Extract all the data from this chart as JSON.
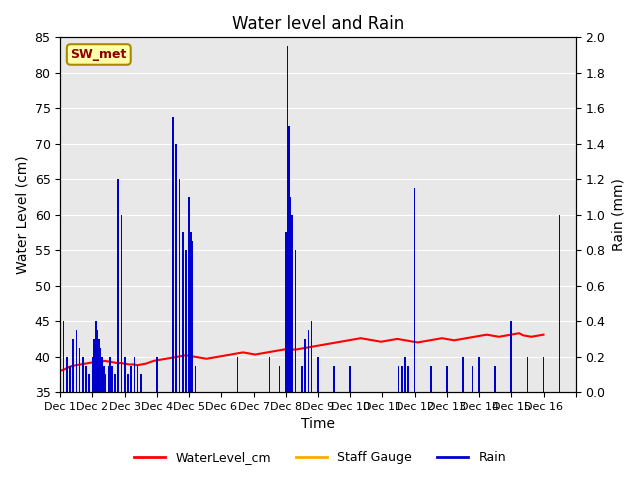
{
  "title": "Water level and Rain",
  "xlabel": "Time",
  "ylabel_left": "Water Level (cm)",
  "ylabel_right": "Rain (mm)",
  "station_label": "SW_met",
  "ylim_left": [
    35,
    85
  ],
  "ylim_right": [
    0.0,
    2.0
  ],
  "yticks_left": [
    35,
    40,
    45,
    50,
    55,
    60,
    65,
    70,
    75,
    80,
    85
  ],
  "yticks_right": [
    0.0,
    0.2,
    0.4,
    0.6,
    0.8,
    1.0,
    1.2,
    1.4,
    1.6,
    1.8,
    2.0
  ],
  "bg_color": "#e8e8e8",
  "water_level_color": "#ff0000",
  "rain_color": "#0000cc",
  "staff_gauge_color": "#ffaa00",
  "legend_labels": [
    "WaterLevel_cm",
    "Staff Gauge",
    "Rain"
  ],
  "water_level": [
    38.0,
    38.2,
    38.5,
    38.7,
    38.8,
    38.9,
    39.0,
    39.1,
    39.2,
    39.2,
    39.3,
    39.4,
    39.3,
    39.2,
    39.1,
    39.1,
    39.0,
    38.9,
    38.9,
    38.8,
    38.9,
    39.0,
    39.2,
    39.4,
    39.5,
    39.6,
    39.7,
    39.8,
    39.9,
    40.0,
    40.1,
    40.2,
    40.1,
    40.0,
    39.9,
    39.8,
    39.7,
    39.8,
    39.9,
    40.0,
    40.1,
    40.2,
    40.3,
    40.4,
    40.5,
    40.6,
    40.5,
    40.4,
    40.3,
    40.4,
    40.5,
    40.6,
    40.7,
    40.8,
    40.9,
    41.0,
    41.1,
    41.0,
    41.0,
    41.1,
    41.2,
    41.3,
    41.4,
    41.5,
    41.6,
    41.7,
    41.8,
    41.9,
    42.0,
    42.1,
    42.2,
    42.3,
    42.4,
    42.5,
    42.6,
    42.5,
    42.4,
    42.3,
    42.2,
    42.1,
    42.2,
    42.3,
    42.4,
    42.5,
    42.4,
    42.3,
    42.2,
    42.1,
    42.0,
    42.1,
    42.2,
    42.3,
    42.4,
    42.5,
    42.6,
    42.5,
    42.4,
    42.3,
    42.4,
    42.5,
    42.6,
    42.7,
    42.8,
    42.9,
    43.0,
    43.1,
    43.0,
    42.9,
    42.8,
    42.9,
    43.0,
    43.1,
    43.2,
    43.3,
    43.0,
    42.9,
    42.8,
    42.9,
    43.0,
    43.1
  ],
  "rain_times": [
    0.1,
    0.2,
    0.3,
    0.4,
    0.5,
    0.6,
    0.7,
    0.8,
    0.9,
    1.0,
    1.05,
    1.1,
    1.15,
    1.2,
    1.25,
    1.3,
    1.35,
    1.4,
    1.5,
    1.55,
    1.6,
    1.7,
    1.8,
    1.9,
    2.0,
    2.1,
    2.2,
    2.3,
    2.4,
    2.5,
    3.0,
    3.5,
    3.6,
    3.7,
    3.8,
    3.9,
    4.0,
    4.05,
    4.1,
    4.2,
    5.5,
    6.5,
    6.8,
    7.0,
    7.05,
    7.1,
    7.15,
    7.2,
    7.3,
    7.5,
    7.6,
    7.7,
    7.8,
    8.0,
    8.5,
    9.0,
    10.5,
    10.6,
    10.7,
    10.8,
    11.0,
    11.5,
    12.0,
    12.5,
    12.8,
    13.0,
    13.5,
    14.0,
    14.5,
    15.0,
    15.5
  ],
  "rain_values": [
    0.4,
    0.2,
    0.15,
    0.3,
    0.35,
    0.25,
    0.2,
    0.15,
    0.1,
    0.2,
    0.3,
    0.4,
    0.35,
    0.3,
    0.25,
    0.2,
    0.15,
    0.1,
    0.15,
    0.2,
    0.15,
    0.1,
    1.2,
    1.0,
    0.2,
    0.1,
    0.15,
    0.2,
    0.15,
    0.1,
    0.2,
    1.55,
    1.4,
    1.2,
    0.9,
    0.8,
    1.1,
    0.9,
    0.85,
    0.15,
    0.2,
    0.2,
    0.15,
    0.9,
    1.95,
    1.5,
    1.1,
    1.0,
    0.8,
    0.15,
    0.3,
    0.35,
    0.4,
    0.2,
    0.15,
    0.15,
    0.15,
    0.15,
    0.2,
    0.15,
    1.15,
    0.15,
    0.15,
    0.2,
    0.15,
    0.2,
    0.15,
    0.4,
    0.2,
    0.2,
    1.0
  ],
  "xmin": 0,
  "xmax": 16,
  "xtick_positions": [
    0,
    1,
    2,
    3,
    4,
    5,
    6,
    7,
    8,
    9,
    10,
    11,
    12,
    13,
    14,
    15,
    16
  ],
  "xtick_labels": [
    "Dec 1",
    "Dec 2",
    "Dec 3",
    "Dec 4",
    "Dec 5",
    "Dec 6",
    "Dec 7",
    "Dec 8",
    "Dec 9",
    "Dec 10",
    "Dec 11",
    "Dec 12",
    "Dec 13",
    "Dec 14",
    "Dec 15",
    "Dec 16",
    ""
  ]
}
